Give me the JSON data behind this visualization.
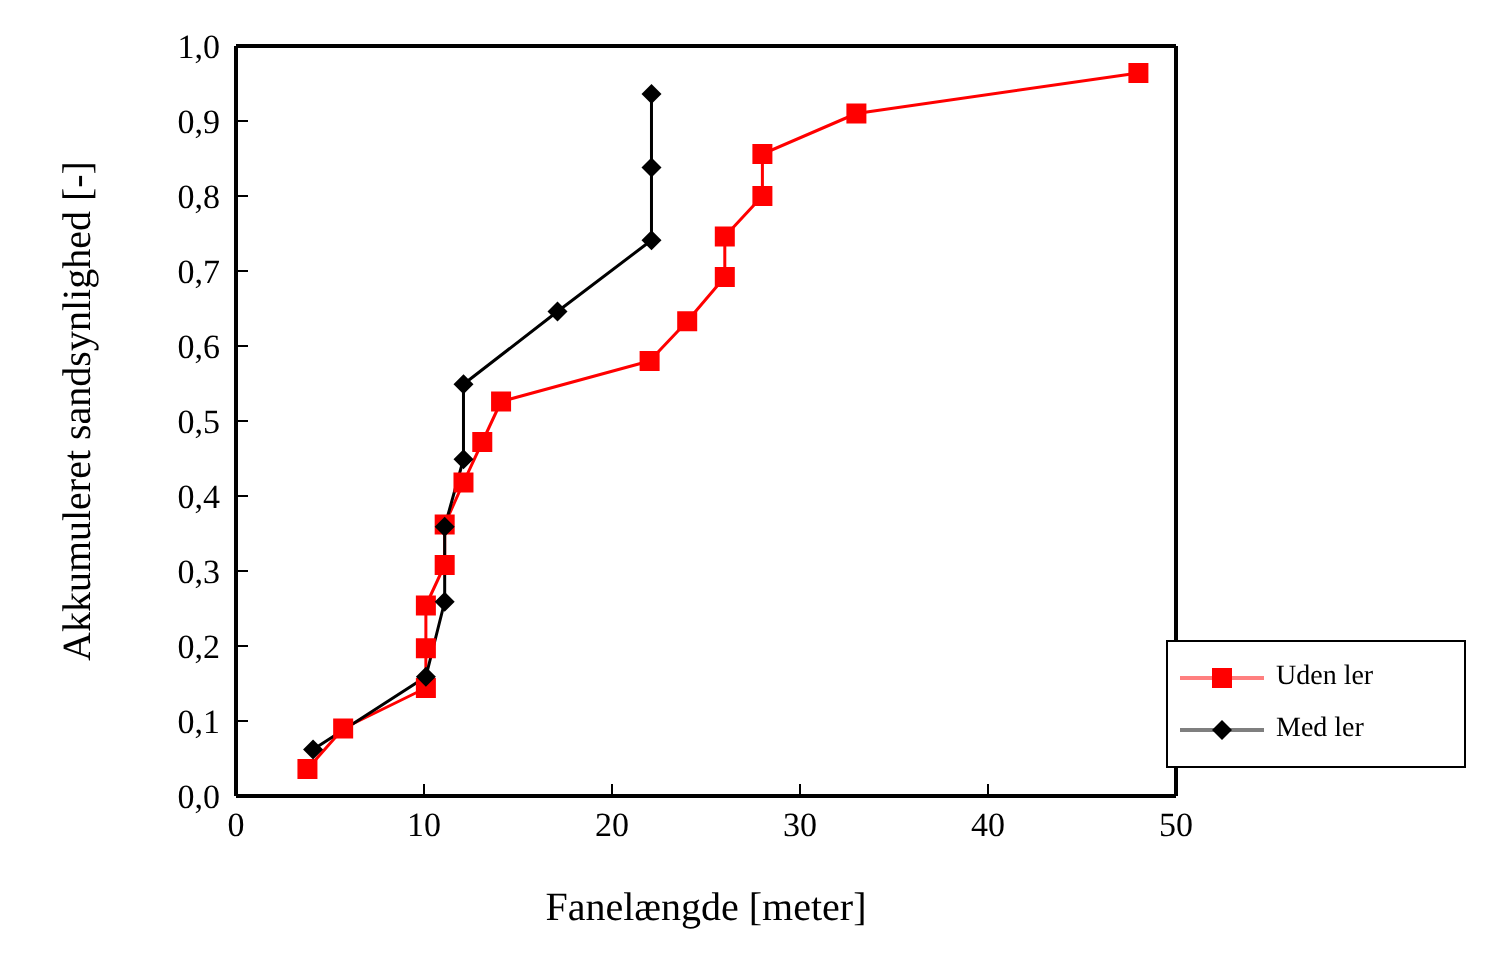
{
  "chart_data": {
    "type": "line",
    "xlabel": "Fanelængde [meter]",
    "ylabel": "Akkumuleret sandsynlighed [-]",
    "xlim": [
      0,
      50
    ],
    "xticks": [
      0,
      10,
      20,
      30,
      40,
      50
    ],
    "ylim": [
      0,
      1
    ],
    "yticks": [
      {
        "value": 0,
        "label": "0,0"
      },
      {
        "value": 0.1,
        "label": "0,1"
      },
      {
        "value": 0.2,
        "label": "0,2"
      },
      {
        "value": 0.3,
        "label": "0,3"
      },
      {
        "value": 0.4,
        "label": "0,4"
      },
      {
        "value": 0.5,
        "label": "0,5"
      },
      {
        "value": 0.6,
        "label": "0,6"
      },
      {
        "value": 0.7,
        "label": "0,7"
      },
      {
        "value": 0.8,
        "label": "0,8"
      },
      {
        "value": 0.9,
        "label": "0,9"
      },
      {
        "value": 1,
        "label": "1,0"
      }
    ],
    "legend": "bottom right",
    "line_style": "solid",
    "series": [
      {
        "name": "Uden ler",
        "color": "#ff0000",
        "marker": "square",
        "x": [
          3.8,
          5.7,
          10.1,
          10.1,
          10.1,
          11.1,
          11.1,
          12.1,
          13.1,
          14.1,
          22,
          24,
          26,
          26,
          28,
          28,
          33,
          48
        ],
        "values": [
          0.036,
          0.09,
          0.144,
          0.197,
          0.254,
          0.308,
          0.362,
          0.418,
          0.472,
          0.526,
          0.58,
          0.633,
          0.692,
          0.746,
          0.8,
          0.856,
          0.91,
          0.964
        ]
      },
      {
        "name": "Med ler",
        "color": "#000000",
        "marker": "diamond",
        "x": [
          4.1,
          10.1,
          11.1,
          11.1,
          12.1,
          12.1,
          17.1,
          22.1,
          22.1,
          22.1
        ],
        "values": [
          0.062,
          0.159,
          0.259,
          0.359,
          0.449,
          0.549,
          0.646,
          0.741,
          0.838,
          0.936
        ]
      }
    ]
  }
}
